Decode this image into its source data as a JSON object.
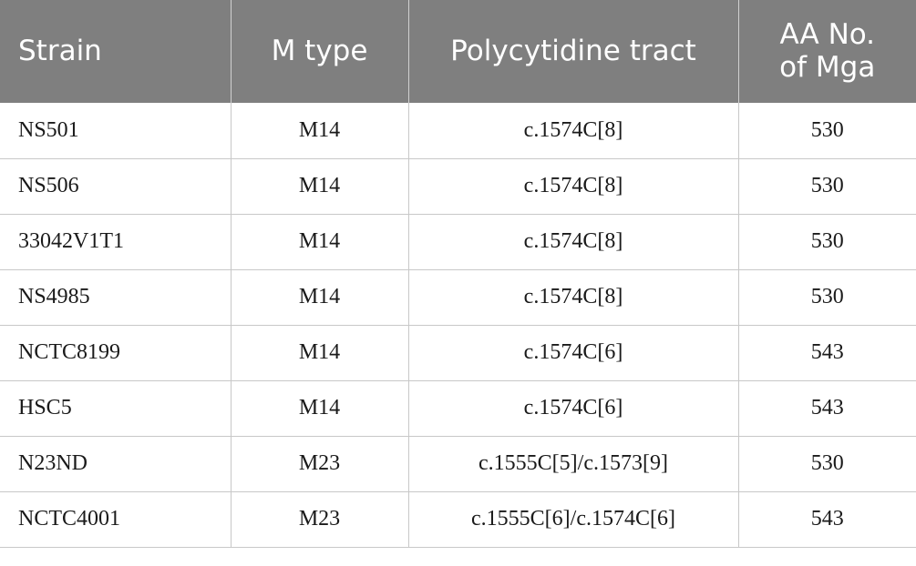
{
  "table": {
    "header": [
      "Strain",
      "M type",
      "Polycytidine tract",
      "AA No. of Mga"
    ],
    "rows": [
      [
        "NS501",
        "M14",
        "c.1574C[8]",
        "530"
      ],
      [
        "NS506",
        "M14",
        "c.1574C[8]",
        "530"
      ],
      [
        "33042V1T1",
        "M14",
        "c.1574C[8]",
        "530"
      ],
      [
        "NS4985",
        "M14",
        "c.1574C[8]",
        "530"
      ],
      [
        "NCTC8199",
        "M14",
        "c.1574C[6]",
        "543"
      ],
      [
        "HSC5",
        "M14",
        "c.1574C[6]",
        "543"
      ],
      [
        "N23ND",
        "M23",
        "c.1555C[5]/c.1573[9]",
        "530"
      ],
      [
        "NCTC4001",
        "M23",
        "c.1555C[6]/c.1574C[6]",
        "543"
      ]
    ]
  }
}
